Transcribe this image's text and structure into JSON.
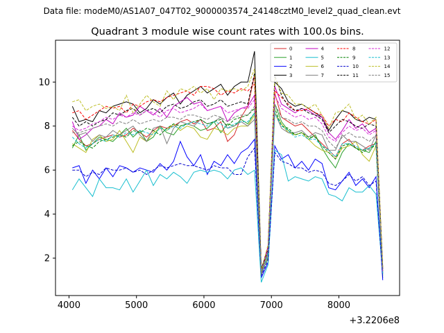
{
  "chart_data": {
    "type": "line",
    "suptitle": "Data file: modeM0/AS1A07_047T02_9000003574_24148cztM0_level2_quad_clean.evt",
    "title": "Quadrant 3 module wise count rates with 100.0s bins.",
    "xlabel": "",
    "ylabel": "",
    "x_offset_label": "+3.2206e8",
    "xlim": [
      3800,
      8900
    ],
    "ylim": [
      0.3,
      11.9
    ],
    "xticks": [
      4000,
      5000,
      6000,
      7000,
      8000
    ],
    "yticks": [
      2,
      4,
      6,
      8,
      10
    ],
    "x": [
      4050,
      4150,
      4250,
      4350,
      4450,
      4550,
      4650,
      4750,
      4850,
      4950,
      5050,
      5150,
      5250,
      5350,
      5450,
      5550,
      5650,
      5750,
      5850,
      5950,
      6050,
      6150,
      6250,
      6350,
      6450,
      6550,
      6650,
      6750,
      6850,
      6950,
      7050,
      7150,
      7250,
      7350,
      7450,
      7550,
      7650,
      7750,
      7850,
      7950,
      8050,
      8150,
      8250,
      8350,
      8450,
      8550,
      8650
    ],
    "series": [
      {
        "name": "0",
        "color": "#d62728",
        "dash": "solid",
        "values": [
          7.8,
          7.4,
          7.1,
          7.2,
          7.4,
          7.5,
          7.6,
          7.5,
          7.6,
          7.9,
          7.7,
          7.5,
          7.8,
          8.0,
          7.9,
          8.0,
          8.2,
          8.3,
          8.1,
          8.3,
          7.8,
          7.9,
          8.2,
          7.3,
          7.6,
          8.4,
          8.9,
          10.3,
          1.5,
          2.2,
          9.5,
          8.4,
          8.2,
          8.0,
          8.1,
          7.8,
          7.5,
          7.2,
          6.9,
          6.6,
          7.2,
          7.4,
          7.0,
          6.9,
          7.1,
          7.2,
          1.3
        ]
      },
      {
        "name": "1",
        "color": "#2ca02c",
        "dash": "solid",
        "values": [
          7.0,
          7.6,
          6.9,
          7.2,
          7.5,
          7.4,
          7.3,
          7.6,
          7.9,
          7.5,
          7.8,
          7.3,
          7.5,
          8.0,
          7.7,
          7.6,
          8.0,
          8.1,
          8.0,
          7.8,
          7.9,
          8.2,
          7.7,
          8.1,
          8.0,
          8.3,
          8.1,
          8.6,
          1.3,
          2.0,
          9.0,
          8.2,
          7.8,
          7.6,
          7.7,
          7.4,
          7.6,
          7.0,
          6.5,
          6.1,
          6.8,
          7.2,
          7.0,
          6.9,
          6.8,
          7.3,
          1.2
        ]
      },
      {
        "name": "2",
        "color": "#0000ff",
        "dash": "solid",
        "values": [
          6.1,
          6.2,
          5.4,
          6.0,
          5.6,
          6.1,
          5.7,
          6.2,
          6.1,
          5.9,
          6.1,
          6.0,
          5.9,
          6.3,
          6.0,
          6.4,
          7.3,
          6.6,
          6.2,
          6.7,
          5.8,
          6.4,
          6.2,
          6.7,
          6.3,
          6.8,
          7.0,
          7.4,
          1.1,
          1.8,
          7.1,
          6.5,
          6.7,
          6.1,
          6.4,
          6.0,
          6.5,
          6.3,
          5.2,
          5.1,
          5.5,
          5.9,
          5.3,
          5.6,
          5.2,
          5.7,
          1.0
        ]
      },
      {
        "name": "3",
        "color": "#000000",
        "dash": "solid",
        "values": [
          8.9,
          8.2,
          8.3,
          8.2,
          8.7,
          8.6,
          8.9,
          9.0,
          9.1,
          9.0,
          8.6,
          8.8,
          9.2,
          9.0,
          9.3,
          9.5,
          9.0,
          9.4,
          9.6,
          9.8,
          9.5,
          9.7,
          9.9,
          9.4,
          9.8,
          10.0,
          10.0,
          11.4,
          1.5,
          2.5,
          10.0,
          9.7,
          9.1,
          8.9,
          9.0,
          8.8,
          8.6,
          8.4,
          7.8,
          8.3,
          8.7,
          8.6,
          8.3,
          8.2,
          8.4,
          8.3,
          1.6
        ]
      },
      {
        "name": "4",
        "color": "#bf00bf",
        "dash": "solid",
        "values": [
          8.2,
          7.4,
          7.6,
          7.9,
          8.0,
          8.3,
          8.1,
          8.6,
          8.4,
          8.5,
          8.9,
          8.7,
          8.5,
          8.8,
          8.4,
          8.9,
          9.1,
          9.3,
          9.0,
          9.1,
          8.7,
          8.8,
          8.9,
          8.2,
          8.6,
          8.8,
          8.9,
          9.4,
          1.3,
          2.5,
          9.8,
          9.0,
          8.8,
          8.6,
          8.8,
          8.7,
          8.5,
          8.4,
          7.7,
          7.4,
          7.8,
          8.3,
          7.9,
          8.1,
          7.7,
          7.9,
          1.5
        ]
      },
      {
        "name": "5",
        "color": "#17becf",
        "dash": "solid",
        "values": [
          5.1,
          5.6,
          5.2,
          4.8,
          5.6,
          5.2,
          5.2,
          5.1,
          5.6,
          5.0,
          5.5,
          6.0,
          5.3,
          5.8,
          5.6,
          5.9,
          5.7,
          5.4,
          5.9,
          6.0,
          5.9,
          6.0,
          5.9,
          5.6,
          6.0,
          6.1,
          5.8,
          6.0,
          0.9,
          1.7,
          6.9,
          6.7,
          5.5,
          5.7,
          5.6,
          5.5,
          5.7,
          5.6,
          4.9,
          4.8,
          4.6,
          5.2,
          5.0,
          5.0,
          5.3,
          4.9,
          1.3
        ]
      },
      {
        "name": "6",
        "color": "#bcbd22",
        "dash": "solid",
        "values": [
          7.2,
          7.0,
          6.8,
          7.4,
          7.6,
          7.3,
          7.4,
          7.8,
          7.3,
          6.8,
          7.5,
          7.3,
          7.7,
          7.9,
          7.8,
          8.1,
          7.8,
          8.0,
          7.9,
          7.5,
          7.4,
          7.9,
          7.8,
          7.6,
          7.9,
          8.0,
          8.0,
          8.5,
          1.4,
          2.2,
          8.6,
          8.1,
          7.7,
          7.6,
          7.7,
          7.4,
          7.1,
          6.9,
          6.8,
          6.5,
          7.0,
          7.1,
          7.3,
          6.7,
          6.4,
          7.1,
          1.4
        ]
      },
      {
        "name": "7",
        "color": "#7f7f7f",
        "dash": "solid",
        "values": [
          7.9,
          7.6,
          7.7,
          7.3,
          7.6,
          7.5,
          7.8,
          7.6,
          7.8,
          8.0,
          7.6,
          7.3,
          7.9,
          8.0,
          7.2,
          7.9,
          8.2,
          8.1,
          8.0,
          8.3,
          8.1,
          8.2,
          8.4,
          7.9,
          8.0,
          8.2,
          8.0,
          8.3,
          1.2,
          2.1,
          8.6,
          7.9,
          7.7,
          7.7,
          7.8,
          7.5,
          7.7,
          7.6,
          6.9,
          6.9,
          7.6,
          7.3,
          7.3,
          7.1,
          6.9,
          7.6,
          1.3
        ]
      },
      {
        "name": "8",
        "color": "#ff0000",
        "dash": "dashed",
        "values": [
          8.6,
          8.7,
          8.3,
          8.5,
          8.7,
          8.9,
          8.8,
          8.9,
          8.6,
          9.0,
          8.9,
          9.1,
          9.2,
          9.1,
          9.3,
          9.4,
          9.5,
          9.6,
          9.4,
          9.8,
          9.8,
          9.7,
          9.4,
          9.6,
          9.5,
          9.7,
          9.6,
          9.9,
          1.4,
          2.6,
          9.6,
          9.3,
          9.0,
          8.7,
          8.7,
          8.8,
          8.6,
          8.5,
          8.0,
          8.3,
          8.2,
          8.6,
          8.4,
          8.2,
          8.1,
          8.3,
          1.5
        ]
      },
      {
        "name": "9",
        "color": "#008000",
        "dash": "dashed",
        "values": [
          7.1,
          7.3,
          7.1,
          7.0,
          7.3,
          7.4,
          7.5,
          7.6,
          7.5,
          7.8,
          7.7,
          7.9,
          7.8,
          7.6,
          7.9,
          8.1,
          8.0,
          8.1,
          8.2,
          8.3,
          8.1,
          8.2,
          8.3,
          8.0,
          8.3,
          8.4,
          8.5,
          8.8,
          1.3,
          2.3,
          8.8,
          8.0,
          7.9,
          7.6,
          7.7,
          7.5,
          7.5,
          7.1,
          6.8,
          6.5,
          7.1,
          7.2,
          7.0,
          6.8,
          7.0,
          7.1,
          1.4
        ]
      },
      {
        "name": "10",
        "color": "#0000cc",
        "dash": "dashed",
        "values": [
          6.0,
          6.0,
          5.7,
          5.9,
          5.8,
          6.1,
          6.0,
          6.0,
          6.1,
          5.9,
          6.0,
          5.8,
          6.0,
          6.2,
          6.1,
          6.2,
          6.3,
          6.2,
          6.2,
          6.1,
          6.0,
          6.2,
          6.1,
          6.1,
          5.8,
          5.8,
          6.6,
          7.0,
          1.2,
          1.9,
          6.8,
          6.4,
          6.3,
          6.1,
          6.1,
          5.9,
          6.0,
          5.9,
          5.4,
          5.3,
          5.5,
          5.8,
          5.5,
          5.7,
          5.3,
          5.5,
          1.1
        ]
      },
      {
        "name": "11",
        "color": "#000000",
        "dash": "dashed",
        "values": [
          8.4,
          8.0,
          8.2,
          8.0,
          8.2,
          8.3,
          8.6,
          8.5,
          8.7,
          8.8,
          8.5,
          8.7,
          8.8,
          8.6,
          8.9,
          9.0,
          8.8,
          8.9,
          9.1,
          9.2,
          8.9,
          9.0,
          9.2,
          8.9,
          9.0,
          9.1,
          9.0,
          10.4,
          1.4,
          2.4,
          10.3,
          9.4,
          8.9,
          8.7,
          8.8,
          8.6,
          8.5,
          8.3,
          7.7,
          8.0,
          8.3,
          8.2,
          8.0,
          7.9,
          8.1,
          8.0,
          1.5
        ]
      },
      {
        "name": "12",
        "color": "#d62bd6",
        "dash": "dashed",
        "values": [
          8.0,
          7.8,
          7.9,
          8.1,
          8.2,
          8.4,
          8.3,
          8.5,
          8.4,
          8.6,
          8.5,
          8.7,
          8.6,
          8.4,
          8.7,
          8.8,
          8.6,
          8.7,
          8.8,
          9.0,
          8.7,
          8.8,
          8.9,
          8.6,
          8.7,
          8.8,
          8.8,
          9.2,
          1.4,
          2.4,
          9.4,
          8.8,
          8.6,
          8.4,
          8.5,
          8.3,
          8.4,
          8.1,
          7.5,
          7.3,
          7.7,
          8.0,
          7.8,
          7.9,
          7.6,
          7.8,
          1.4
        ]
      },
      {
        "name": "13",
        "color": "#17becf",
        "dash": "dashed",
        "values": [
          7.5,
          7.2,
          7.0,
          7.2,
          7.4,
          7.3,
          7.6,
          7.5,
          7.7,
          7.6,
          7.8,
          7.7,
          7.6,
          7.9,
          7.8,
          8.0,
          7.9,
          8.1,
          8.2,
          8.1,
          8.0,
          8.2,
          8.1,
          7.9,
          8.1,
          8.2,
          8.2,
          8.6,
          1.3,
          2.2,
          8.6,
          8.0,
          7.8,
          7.5,
          7.6,
          7.4,
          7.4,
          7.1,
          6.9,
          6.6,
          7.2,
          7.2,
          7.1,
          6.9,
          7.0,
          7.2,
          1.3
        ]
      },
      {
        "name": "14",
        "color": "#bcbd22",
        "dash": "dashed",
        "values": [
          9.1,
          9.2,
          8.7,
          8.9,
          9.0,
          8.8,
          8.9,
          8.7,
          9.4,
          8.6,
          9.0,
          9.4,
          9.1,
          8.9,
          9.6,
          9.2,
          9.7,
          9.6,
          9.8,
          9.5,
          9.7,
          9.2,
          9.7,
          9.6,
          9.7,
          9.6,
          9.8,
          10.6,
          1.4,
          2.6,
          10.2,
          9.5,
          9.4,
          9.0,
          9.0,
          8.8,
          9.0,
          8.5,
          7.9,
          8.6,
          8.7,
          9.0,
          8.3,
          8.5,
          8.1,
          8.4,
          1.6
        ]
      },
      {
        "name": "15",
        "color": "#7f7f7f",
        "dash": "dashed",
        "values": [
          7.7,
          7.7,
          7.8,
          7.9,
          8.0,
          8.1,
          8.0,
          8.2,
          8.1,
          8.3,
          8.1,
          8.2,
          8.3,
          8.2,
          8.4,
          8.4,
          8.3,
          8.5,
          8.5,
          8.4,
          8.3,
          8.5,
          8.4,
          8.2,
          8.4,
          8.5,
          8.5,
          8.9,
          1.3,
          2.3,
          9.0,
          8.4,
          8.3,
          8.1,
          8.2,
          8.0,
          8.0,
          7.8,
          7.3,
          7.0,
          7.5,
          7.7,
          7.5,
          7.5,
          7.3,
          7.6,
          1.4
        ]
      }
    ],
    "legend": {
      "location": "upper-right",
      "columns": 4
    }
  }
}
